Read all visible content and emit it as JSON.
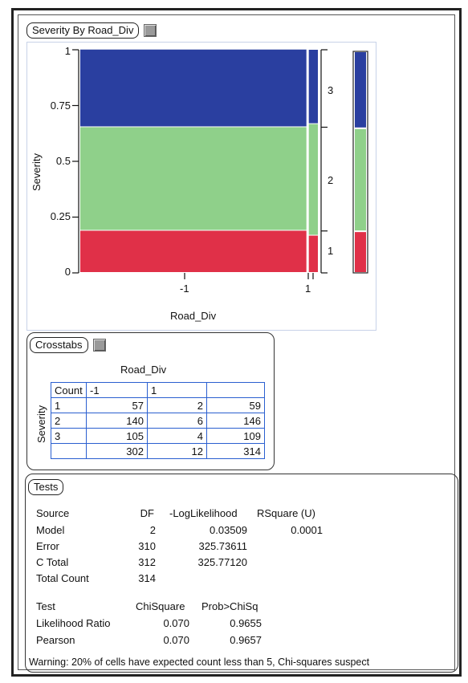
{
  "mosaic": {
    "tab_label": "Severity By Road_Div",
    "ylabel": "Severity",
    "xlabel": "Road_Div",
    "y_ticks": [
      "1",
      "0.75",
      "0.5",
      "0.25",
      "0"
    ],
    "x_ticks": [
      "-1",
      "1"
    ],
    "level_labels": [
      "3",
      "2",
      "1"
    ],
    "colors": {
      "level_1": "#e03048",
      "level_2": "#8fd08a",
      "level_3": "#2a3fa0"
    }
  },
  "chart_data": {
    "type": "bar",
    "title": "Severity By Road_Div",
    "xlabel": "Road_Div",
    "ylabel": "Severity",
    "categories": [
      "-1",
      "1"
    ],
    "series": [
      {
        "name": "1",
        "values": [
          0.189,
          0.167
        ]
      },
      {
        "name": "2",
        "values": [
          0.464,
          0.5
        ]
      },
      {
        "name": "3",
        "values": [
          0.348,
          0.333
        ]
      }
    ],
    "ylim": [
      0,
      1
    ]
  },
  "crosstabs": {
    "tab_label": "Crosstabs",
    "col_var": "Road_Div",
    "row_var": "Severity",
    "corner": "Count",
    "col_headers": [
      "-1",
      "1",
      ""
    ],
    "rows": [
      {
        "label": "1",
        "cells": [
          "57",
          "2",
          "59"
        ]
      },
      {
        "label": "2",
        "cells": [
          "140",
          "6",
          "146"
        ]
      },
      {
        "label": "3",
        "cells": [
          "105",
          "4",
          "109"
        ]
      },
      {
        "label": "",
        "cells": [
          "302",
          "12",
          "314"
        ]
      }
    ]
  },
  "tests": {
    "tab_label": "Tests",
    "headers": [
      "Source",
      "DF",
      "-LogLikelihood",
      "RSquare (U)"
    ],
    "rows": [
      [
        "Model",
        "2",
        "0.03509",
        "0.0001"
      ],
      [
        "Error",
        "310",
        "325.73611",
        ""
      ],
      [
        "C Total",
        "312",
        "325.77120",
        ""
      ],
      [
        "Total Count",
        "314",
        "",
        ""
      ]
    ],
    "test_headers": [
      "Test",
      "ChiSquare",
      "Prob>ChiSq"
    ],
    "test_rows": [
      [
        "Likelihood Ratio",
        "0.070",
        "0.9655"
      ],
      [
        "Pearson",
        "0.070",
        "0.9657"
      ]
    ],
    "warning": "Warning: 20% of cells have expected count less than 5, Chi-squares suspect"
  }
}
